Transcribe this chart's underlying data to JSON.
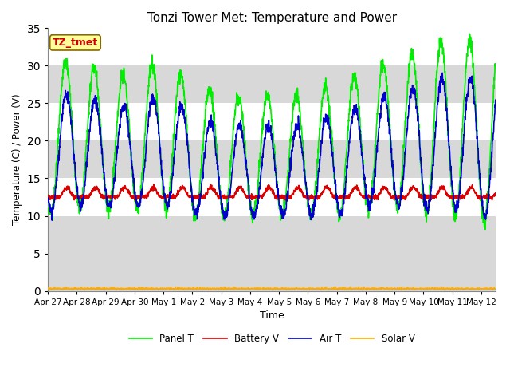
{
  "title": "Tonzi Tower Met: Temperature and Power",
  "xlabel": "Time",
  "ylabel": "Temperature (C) / Power (V)",
  "ylim": [
    0,
    35
  ],
  "background_color": "#ffffff",
  "plot_bg_color": "#d8d8d8",
  "white_band_ranges": [
    [
      10,
      15
    ],
    [
      20,
      25
    ],
    [
      30,
      35
    ]
  ],
  "label_box_text": "TZ_tmet",
  "label_box_color": "#ffff99",
  "label_box_text_color": "#cc0000",
  "legend_labels": [
    "Panel T",
    "Battery V",
    "Air T",
    "Solar V"
  ],
  "legend_colors": [
    "#00ee00",
    "#dd0000",
    "#0000cc",
    "#ffaa00"
  ],
  "x_tick_labels": [
    "Apr 27",
    "Apr 28",
    "Apr 29",
    "Apr 30",
    "May 1",
    "May 2",
    "May 3",
    "May 4",
    "May 5",
    "May 6",
    "May 7",
    "May 8",
    "May 9",
    "May 10",
    "May 11",
    "May 12"
  ],
  "n_days": 15.5
}
